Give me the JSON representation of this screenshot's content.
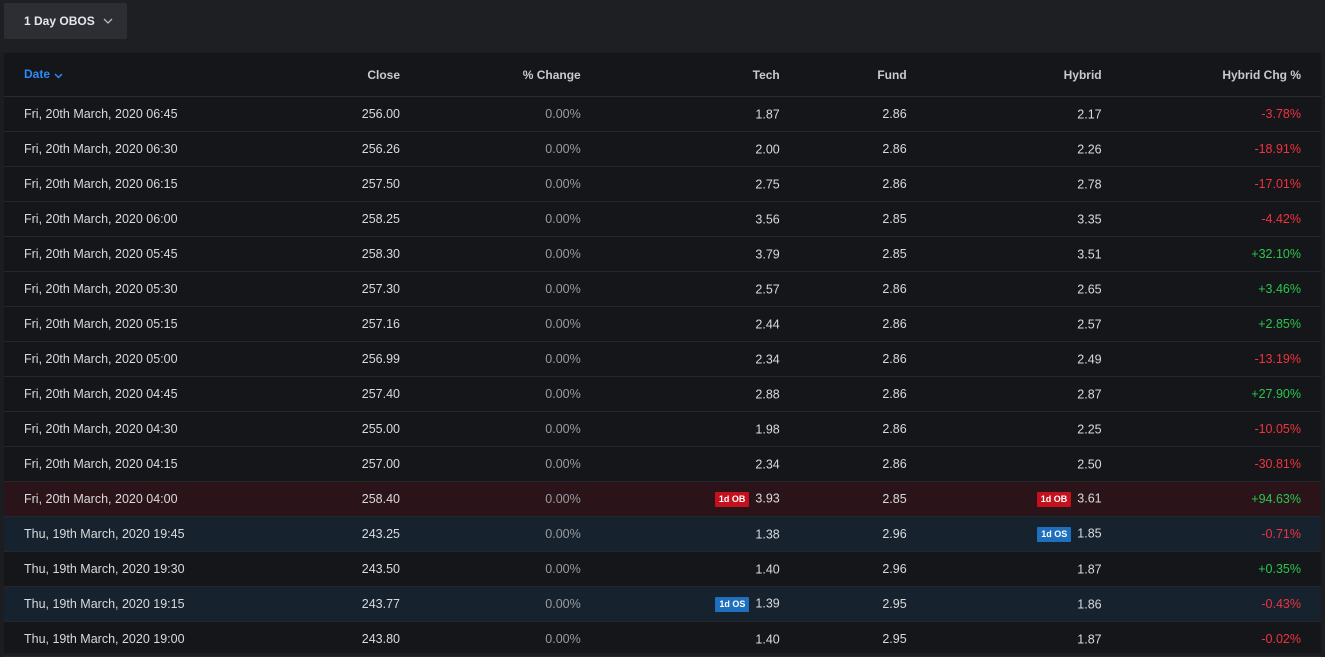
{
  "dropdown": {
    "label": "1 Day OBOS",
    "icon": "chevron-down-icon"
  },
  "table": {
    "headers": {
      "date": "Date",
      "close": "Close",
      "pct_change": "% Change",
      "tech": "Tech",
      "fund": "Fund",
      "hybrid": "Hybrid",
      "hybrid_chg": "Hybrid Chg %"
    },
    "rows": [
      {
        "date": "Fri, 20th March, 2020 06:45",
        "close": "256.00",
        "pct": "0.00%",
        "tech": "1.87",
        "tech_badge": "",
        "fund": "2.86",
        "hybrid": "2.17",
        "hybrid_badge": "",
        "hchg": "-3.78%",
        "dir": "neg",
        "highlight": ""
      },
      {
        "date": "Fri, 20th March, 2020 06:30",
        "close": "256.26",
        "pct": "0.00%",
        "tech": "2.00",
        "tech_badge": "",
        "fund": "2.86",
        "hybrid": "2.26",
        "hybrid_badge": "",
        "hchg": "-18.91%",
        "dir": "neg",
        "highlight": ""
      },
      {
        "date": "Fri, 20th March, 2020 06:15",
        "close": "257.50",
        "pct": "0.00%",
        "tech": "2.75",
        "tech_badge": "",
        "fund": "2.86",
        "hybrid": "2.78",
        "hybrid_badge": "",
        "hchg": "-17.01%",
        "dir": "neg",
        "highlight": ""
      },
      {
        "date": "Fri, 20th March, 2020 06:00",
        "close": "258.25",
        "pct": "0.00%",
        "tech": "3.56",
        "tech_badge": "",
        "fund": "2.85",
        "hybrid": "3.35",
        "hybrid_badge": "",
        "hchg": "-4.42%",
        "dir": "neg",
        "highlight": ""
      },
      {
        "date": "Fri, 20th March, 2020 05:45",
        "close": "258.30",
        "pct": "0.00%",
        "tech": "3.79",
        "tech_badge": "",
        "fund": "2.85",
        "hybrid": "3.51",
        "hybrid_badge": "",
        "hchg": "+32.10%",
        "dir": "pos",
        "highlight": ""
      },
      {
        "date": "Fri, 20th March, 2020 05:30",
        "close": "257.30",
        "pct": "0.00%",
        "tech": "2.57",
        "tech_badge": "",
        "fund": "2.86",
        "hybrid": "2.65",
        "hybrid_badge": "",
        "hchg": "+3.46%",
        "dir": "pos",
        "highlight": ""
      },
      {
        "date": "Fri, 20th March, 2020 05:15",
        "close": "257.16",
        "pct": "0.00%",
        "tech": "2.44",
        "tech_badge": "",
        "fund": "2.86",
        "hybrid": "2.57",
        "hybrid_badge": "",
        "hchg": "+2.85%",
        "dir": "pos",
        "highlight": ""
      },
      {
        "date": "Fri, 20th March, 2020 05:00",
        "close": "256.99",
        "pct": "0.00%",
        "tech": "2.34",
        "tech_badge": "",
        "fund": "2.86",
        "hybrid": "2.49",
        "hybrid_badge": "",
        "hchg": "-13.19%",
        "dir": "neg",
        "highlight": ""
      },
      {
        "date": "Fri, 20th March, 2020 04:45",
        "close": "257.40",
        "pct": "0.00%",
        "tech": "2.88",
        "tech_badge": "",
        "fund": "2.86",
        "hybrid": "2.87",
        "hybrid_badge": "",
        "hchg": "+27.90%",
        "dir": "pos",
        "highlight": ""
      },
      {
        "date": "Fri, 20th March, 2020 04:30",
        "close": "255.00",
        "pct": "0.00%",
        "tech": "1.98",
        "tech_badge": "",
        "fund": "2.86",
        "hybrid": "2.25",
        "hybrid_badge": "",
        "hchg": "-10.05%",
        "dir": "neg",
        "highlight": ""
      },
      {
        "date": "Fri, 20th March, 2020 04:15",
        "close": "257.00",
        "pct": "0.00%",
        "tech": "2.34",
        "tech_badge": "",
        "fund": "2.86",
        "hybrid": "2.50",
        "hybrid_badge": "",
        "hchg": "-30.81%",
        "dir": "neg",
        "highlight": ""
      },
      {
        "date": "Fri, 20th March, 2020 04:00",
        "close": "258.40",
        "pct": "0.00%",
        "tech": "3.93",
        "tech_badge": "1d OB",
        "fund": "2.85",
        "hybrid": "3.61",
        "hybrid_badge": "1d OB",
        "hchg": "+94.63%",
        "dir": "pos",
        "highlight": "ob"
      },
      {
        "date": "Thu, 19th March, 2020 19:45",
        "close": "243.25",
        "pct": "0.00%",
        "tech": "1.38",
        "tech_badge": "",
        "fund": "2.96",
        "hybrid": "1.85",
        "hybrid_badge": "1d OS",
        "hchg": "-0.71%",
        "dir": "neg",
        "highlight": "os"
      },
      {
        "date": "Thu, 19th March, 2020 19:30",
        "close": "243.50",
        "pct": "0.00%",
        "tech": "1.40",
        "tech_badge": "",
        "fund": "2.96",
        "hybrid": "1.87",
        "hybrid_badge": "",
        "hchg": "+0.35%",
        "dir": "pos",
        "highlight": ""
      },
      {
        "date": "Thu, 19th March, 2020 19:15",
        "close": "243.77",
        "pct": "0.00%",
        "tech": "1.39",
        "tech_badge": "1d OS",
        "fund": "2.95",
        "hybrid": "1.86",
        "hybrid_badge": "",
        "hchg": "-0.43%",
        "dir": "neg",
        "highlight": "os"
      },
      {
        "date": "Thu, 19th March, 2020 19:00",
        "close": "243.80",
        "pct": "0.00%",
        "tech": "1.40",
        "tech_badge": "",
        "fund": "2.95",
        "hybrid": "1.87",
        "hybrid_badge": "",
        "hchg": "-0.02%",
        "dir": "neg",
        "highlight": ""
      }
    ]
  },
  "colors": {
    "accent": "#2a8af6",
    "negative": "#f0333e",
    "positive": "#2bc54e",
    "ob_badge": "#c4111d",
    "os_badge": "#1f6fbf"
  }
}
